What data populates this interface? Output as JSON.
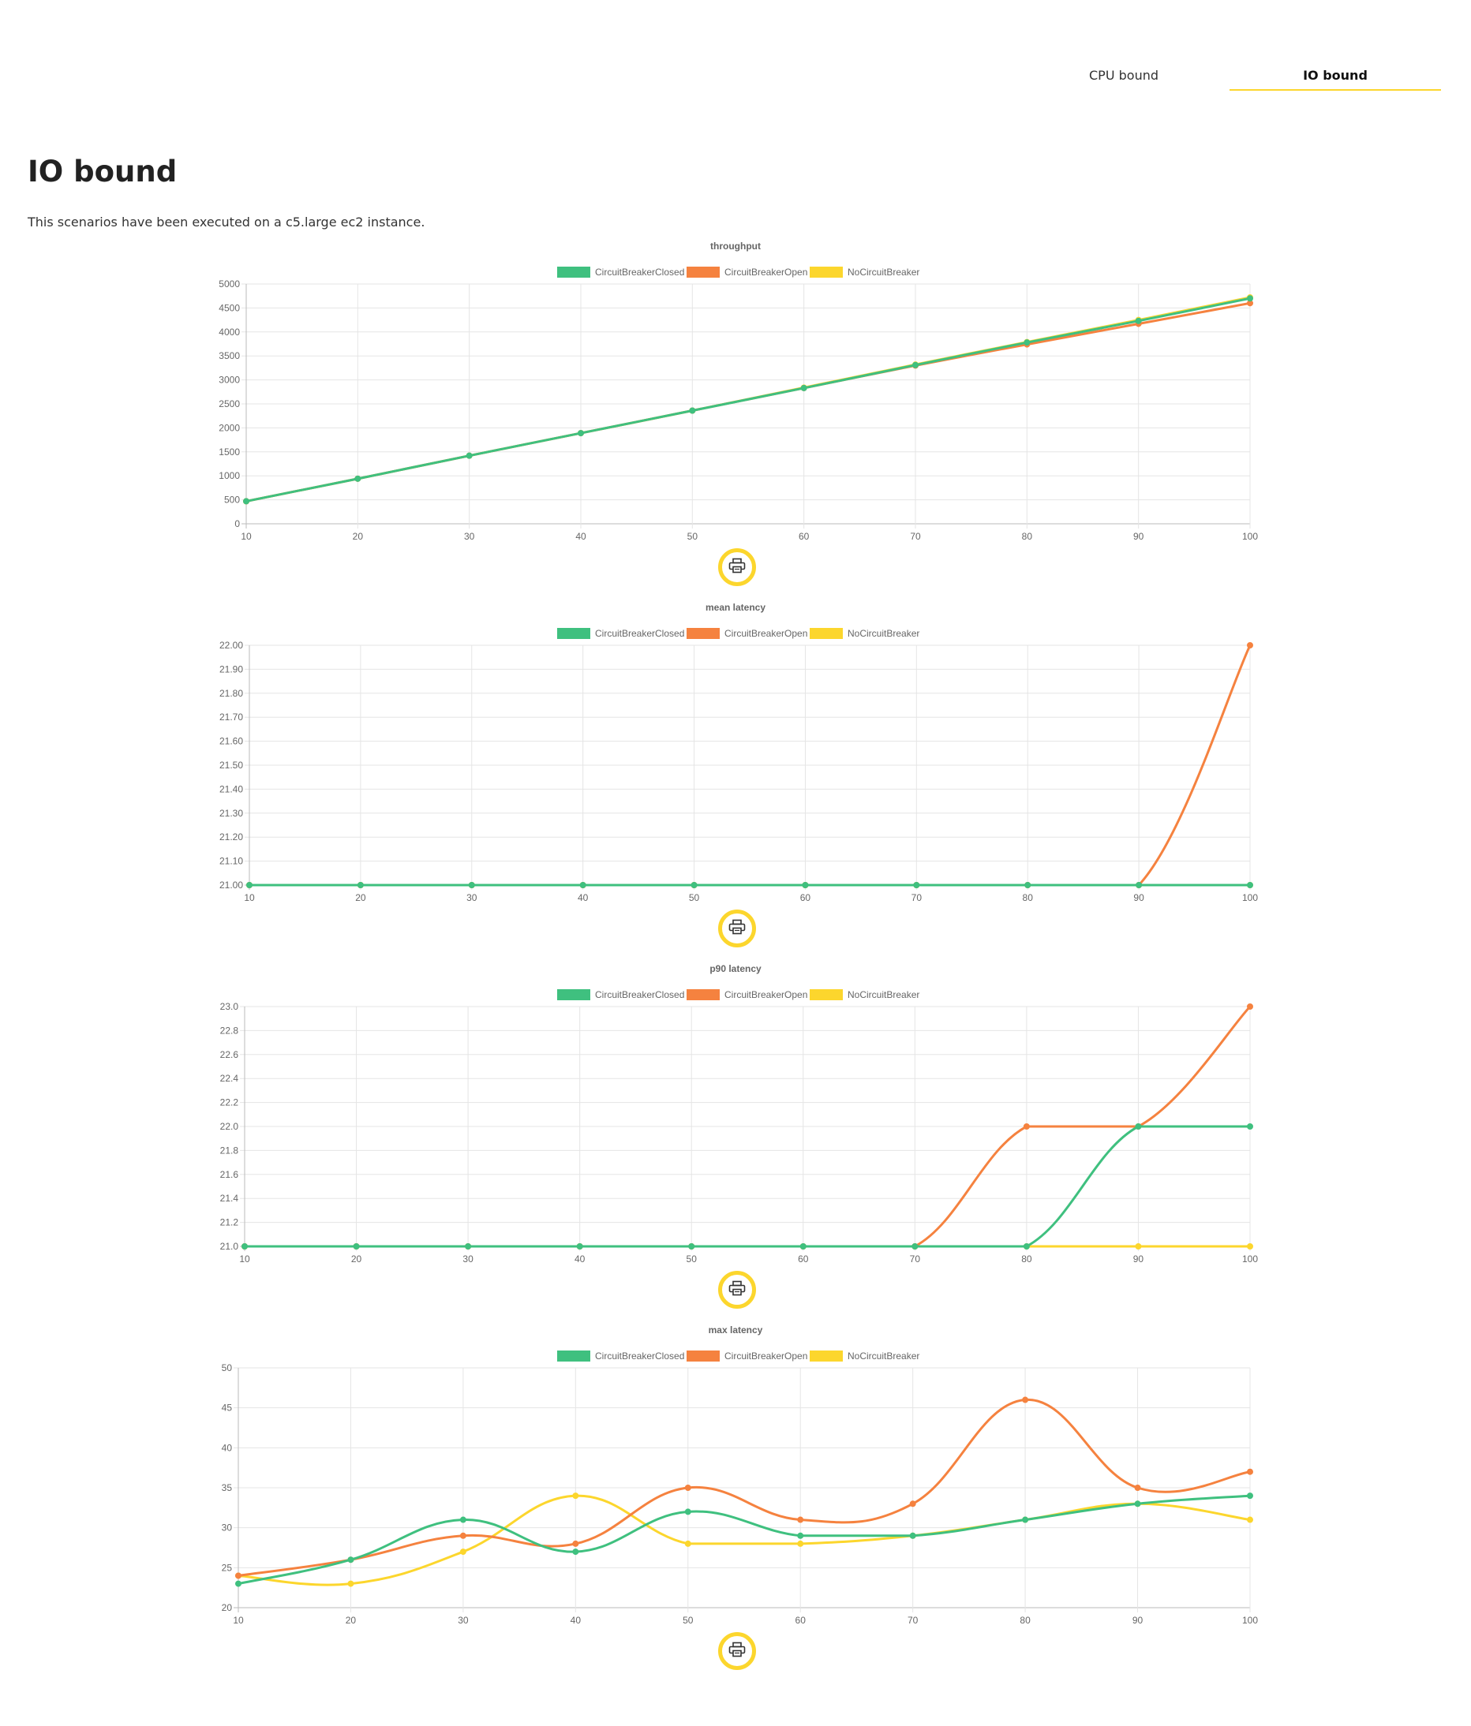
{
  "tabs": [
    {
      "label": "CPU bound",
      "active": false
    },
    {
      "label": "IO bound",
      "active": true
    }
  ],
  "page": {
    "title": "IO bound",
    "description": "This scenarios have been executed on a c5.large ec2 instance."
  },
  "colors": {
    "accent": "#fcd62d",
    "CircuitBreakerClosed": "#3fc07f",
    "CircuitBreakerOpen": "#f5823f",
    "NoCircuitBreaker": "#fcd62d"
  },
  "print_icon": "printer-icon",
  "chart_data": [
    {
      "type": "line",
      "title": "throughput",
      "legend_position": "top",
      "grid": true,
      "x": [
        10,
        20,
        30,
        40,
        50,
        60,
        70,
        80,
        90,
        100
      ],
      "ylim": [
        0,
        5000
      ],
      "yticks": [
        "0",
        "500",
        "1000",
        "1500",
        "2000",
        "2500",
        "3000",
        "3500",
        "4000",
        "4500",
        "5000"
      ],
      "series": [
        {
          "name": "CircuitBreakerClosed",
          "values": [
            470,
            940,
            1420,
            1890,
            2360,
            2830,
            3310,
            3780,
            4230,
            4700
          ]
        },
        {
          "name": "CircuitBreakerOpen",
          "values": [
            470,
            940,
            1420,
            1890,
            2360,
            2830,
            3300,
            3740,
            4170,
            4600
          ]
        },
        {
          "name": "NoCircuitBreaker",
          "values": [
            470,
            940,
            1420,
            1890,
            2360,
            2840,
            3320,
            3790,
            4250,
            4720
          ]
        }
      ]
    },
    {
      "type": "line",
      "title": "mean latency",
      "legend_position": "top",
      "grid": true,
      "x": [
        10,
        20,
        30,
        40,
        50,
        60,
        70,
        80,
        90,
        100
      ],
      "ylim": [
        21.0,
        22.0
      ],
      "yticks": [
        "21.00",
        "21.10",
        "21.20",
        "21.30",
        "21.40",
        "21.50",
        "21.60",
        "21.70",
        "21.80",
        "21.90",
        "22.00"
      ],
      "series": [
        {
          "name": "CircuitBreakerClosed",
          "values": [
            21,
            21,
            21,
            21,
            21,
            21,
            21,
            21,
            21,
            21
          ]
        },
        {
          "name": "CircuitBreakerOpen",
          "values": [
            21,
            21,
            21,
            21,
            21,
            21,
            21,
            21,
            21,
            22
          ]
        },
        {
          "name": "NoCircuitBreaker",
          "values": [
            21,
            21,
            21,
            21,
            21,
            21,
            21,
            21,
            21,
            21
          ]
        }
      ]
    },
    {
      "type": "line",
      "title": "p90 latency",
      "legend_position": "top",
      "grid": true,
      "x": [
        10,
        20,
        30,
        40,
        50,
        60,
        70,
        80,
        90,
        100
      ],
      "ylim": [
        21.0,
        23.0
      ],
      "yticks": [
        "21.0",
        "21.2",
        "21.4",
        "21.6",
        "21.8",
        "22.0",
        "22.2",
        "22.4",
        "22.6",
        "22.8",
        "23.0"
      ],
      "series": [
        {
          "name": "CircuitBreakerClosed",
          "values": [
            21,
            21,
            21,
            21,
            21,
            21,
            21,
            21,
            22,
            22
          ]
        },
        {
          "name": "CircuitBreakerOpen",
          "values": [
            21,
            21,
            21,
            21,
            21,
            21,
            21,
            22,
            22,
            23
          ]
        },
        {
          "name": "NoCircuitBreaker",
          "values": [
            21,
            21,
            21,
            21,
            21,
            21,
            21,
            21,
            21,
            21
          ]
        }
      ]
    },
    {
      "type": "line",
      "title": "max latency",
      "legend_position": "top",
      "grid": true,
      "x": [
        10,
        20,
        30,
        40,
        50,
        60,
        70,
        80,
        90,
        100
      ],
      "ylim": [
        20,
        50
      ],
      "yticks": [
        "20",
        "25",
        "30",
        "35",
        "40",
        "45",
        "50"
      ],
      "series": [
        {
          "name": "CircuitBreakerClosed",
          "values": [
            23,
            26,
            31,
            27,
            32,
            29,
            29,
            31,
            33,
            34
          ]
        },
        {
          "name": "CircuitBreakerOpen",
          "values": [
            24,
            26,
            29,
            28,
            35,
            31,
            33,
            46,
            35,
            37
          ]
        },
        {
          "name": "NoCircuitBreaker",
          "values": [
            24,
            23,
            27,
            34,
            28,
            28,
            29,
            31,
            33,
            31
          ]
        }
      ]
    }
  ]
}
